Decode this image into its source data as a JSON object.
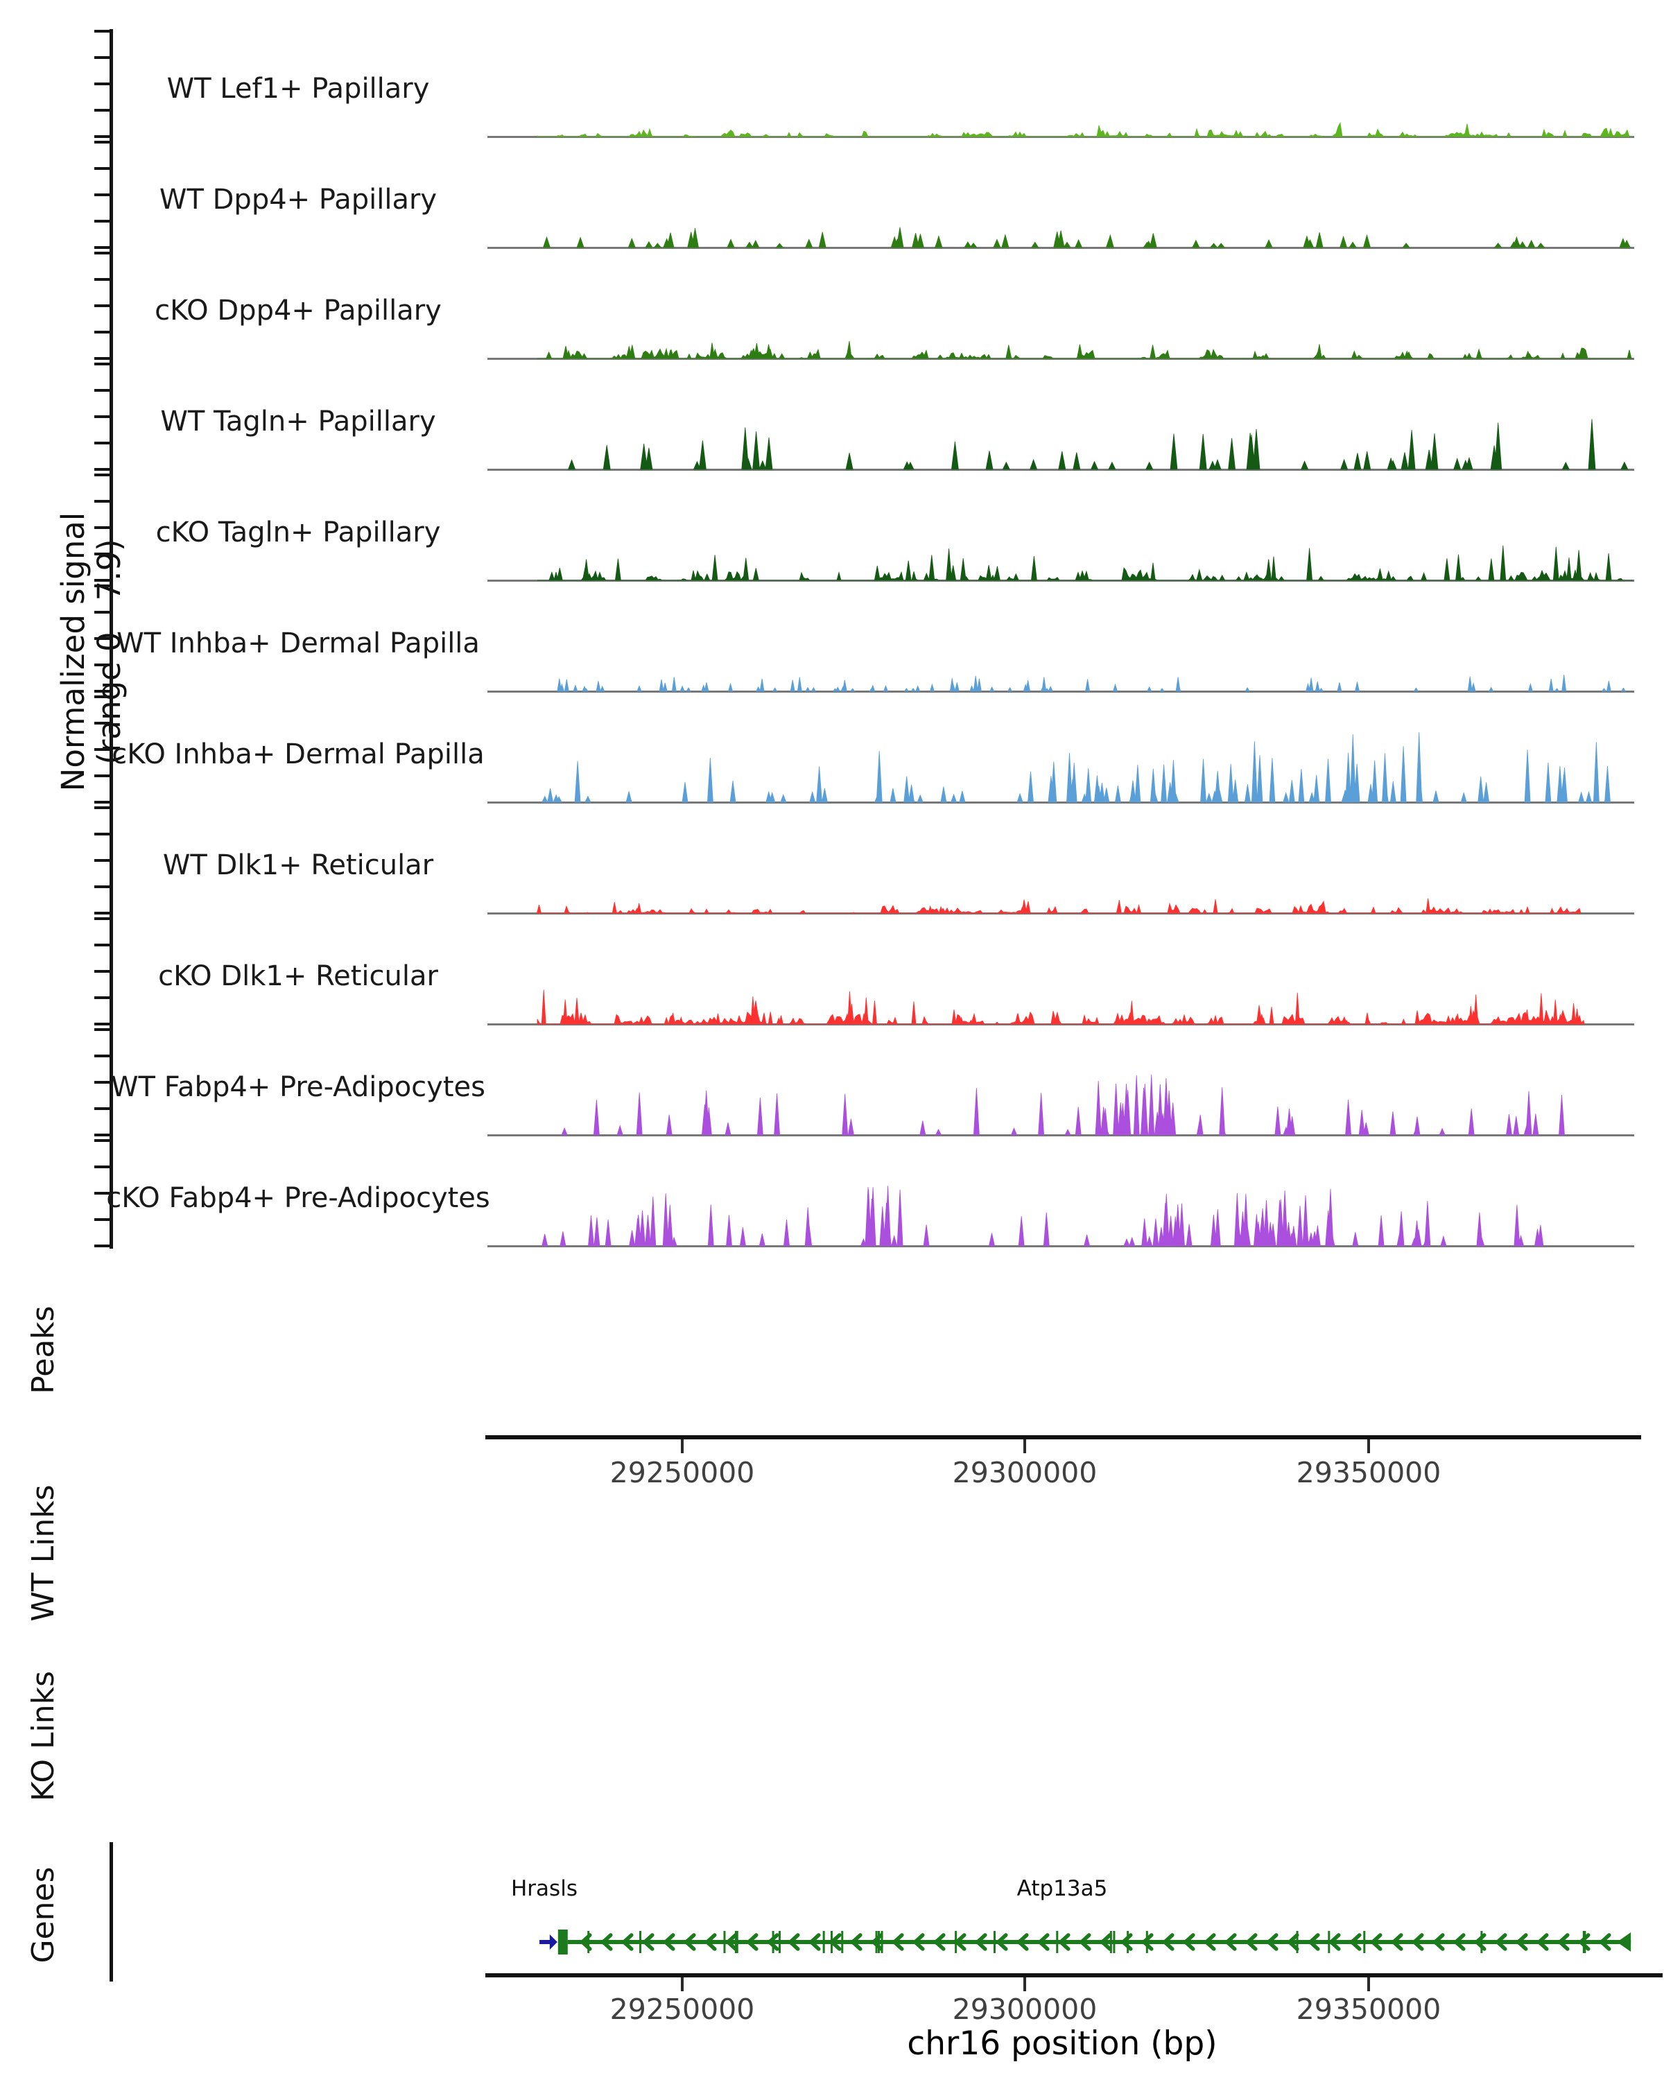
{
  "figure": {
    "ylabel_line1": "Normalized signal",
    "ylabel_line2": "(range 0 - 7.9)",
    "sections": {
      "peaks": "Peaks",
      "wt_links": "WT Links",
      "ko_links": "KO Links",
      "genes": "Genes"
    },
    "xaxis": {
      "title": "chr16 position (bp)",
      "tick_labels": [
        "29250000",
        "29300000",
        "29350000"
      ]
    },
    "gene_labels": {
      "hrasls": "Hrasls",
      "atp13a5": "Atp13a5"
    }
  },
  "chart_data": {
    "type": "area",
    "subtype": "genome-signal-tracks",
    "chromosome": "chr16",
    "x_ticks": [
      29250000,
      29300000,
      29350000
    ],
    "x_range_bp": [
      29221600,
      29391000
    ],
    "y_range": [
      0,
      7.9
    ],
    "grid": false,
    "tracks": [
      {
        "name": "WT Lef1+ Papillary",
        "color": "#5CB71E",
        "pattern": "dense-low-fuzz",
        "rel_max_signal": 0.12,
        "seed": 11,
        "style": "fuzz",
        "cover": 0.8,
        "maxH": 14,
        "spikeCount": 10,
        "spikeMax": 19,
        "endAbs": 2355
      },
      {
        "name": "WT Dpp4+ Papillary",
        "color": "#2E7D12",
        "pattern": "sparse-spikes",
        "rel_max_signal": 0.22,
        "seed": 22,
        "style": "spikes",
        "count": 58,
        "maxH": 30,
        "minH": 6,
        "w": 5,
        "endAbs": 2350
      },
      {
        "name": "cKO Dpp4+ Papillary",
        "color": "#2E7D12",
        "pattern": "dense-low-fuzz",
        "rel_max_signal": 0.16,
        "seed": 33,
        "style": "mixed",
        "cover": 0.85,
        "maxH": 18,
        "spikeCount": 25,
        "spikeMax": 26,
        "w": 4,
        "endAbs": 2355
      },
      {
        "name": "WT Tagln+ Papillary",
        "color": "#145A14",
        "pattern": "sparse-tall-spikes",
        "rel_max_signal": 0.5,
        "seed": 44,
        "style": "spikes",
        "count": 50,
        "maxH": 75,
        "minH": 10,
        "w": 5,
        "endAbs": 2350
      },
      {
        "name": "cKO Tagln+ Papillary",
        "color": "#145A14",
        "pattern": "dense-medium-fuzz",
        "rel_max_signal": 0.38,
        "seed": 55,
        "style": "mixed",
        "cover": 0.82,
        "maxH": 24,
        "spikeCount": 55,
        "spikeMax": 56,
        "w": 4,
        "endAbs": 2355
      },
      {
        "name": "WT Inhba+ Dermal Papilla",
        "color": "#5B9FD8",
        "pattern": "sparse-small-spikes",
        "rel_max_signal": 0.17,
        "seed": 66,
        "style": "spikes",
        "count": 78,
        "maxH": 24,
        "minH": 4,
        "w": 3,
        "endAbs": 2345
      },
      {
        "name": "cKO Inhba+ Dermal Papilla",
        "color": "#5B9FD8",
        "pattern": "tall-thin-spikes",
        "rel_max_signal": 0.75,
        "seed": 77,
        "style": "spikes",
        "count": 95,
        "maxH": 112,
        "minH": 14,
        "w": 4,
        "rightBias": true,
        "endAbs": 2350
      },
      {
        "name": "WT Dlk1+ Reticular",
        "color": "#FF3030",
        "pattern": "dense-low-fuzz",
        "rel_max_signal": 0.12,
        "seed": 88,
        "style": "mixed",
        "cover": 0.86,
        "maxH": 15,
        "spikeCount": 15,
        "spikeMax": 22,
        "w": 3,
        "endAbs": 2280
      },
      {
        "name": "cKO Dlk1+ Reticular",
        "color": "#FF3030",
        "pattern": "dense-medium-fuzz",
        "rel_max_signal": 0.3,
        "seed": 99,
        "style": "mixed",
        "cover": 0.9,
        "maxH": 26,
        "spikeCount": 45,
        "spikeMax": 50,
        "w": 3,
        "endAbs": 2285
      },
      {
        "name": "WT Fabp4+ Pre-Adipocytes",
        "color": "#AB4FDE",
        "pattern": "sparse-thin-spikes",
        "rel_max_signal": 0.58,
        "seed": 110,
        "style": "spikes",
        "count": 46,
        "maxH": 70,
        "minH": 8,
        "w": 4,
        "clusters": [
          {
            "c": 0.575,
            "w": 0.045,
            "n": 18,
            "h": 1.25
          }
        ],
        "endAbs": 2295
      },
      {
        "name": "cKO Fabp4+ Pre-Adipocytes",
        "color": "#AB4FDE",
        "pattern": "clustered-tall-spikes",
        "rel_max_signal": 0.66,
        "seed": 121,
        "style": "spikes",
        "count": 68,
        "maxH": 78,
        "minH": 10,
        "w": 4,
        "clusters": [
          {
            "c": 0.33,
            "w": 0.02,
            "n": 9,
            "h": 1.3
          },
          {
            "c": 0.66,
            "w": 0.1,
            "n": 26,
            "h": 1.1
          }
        ],
        "endAbs": 2285
      },
      {
        "name": "",
        "color": "",
        "pattern": "",
        "rel_max_signal": 0,
        "seed": 0,
        "style": "none"
      }
    ],
    "peaks": [],
    "wt_links": [],
    "ko_links": [],
    "genes": [
      {
        "name": "Hrasls",
        "strand": "+",
        "color": "#1A1AA0",
        "approx_start_bp": 29229200,
        "approx_end_bp": 29231600
      },
      {
        "name": "Atp13a5",
        "strand": "-",
        "color": "#1B7A1B",
        "approx_start_bp": 29231900,
        "approx_end_bp": 29388200,
        "exon_tick_count": 26,
        "exon_seed": 7
      }
    ]
  }
}
